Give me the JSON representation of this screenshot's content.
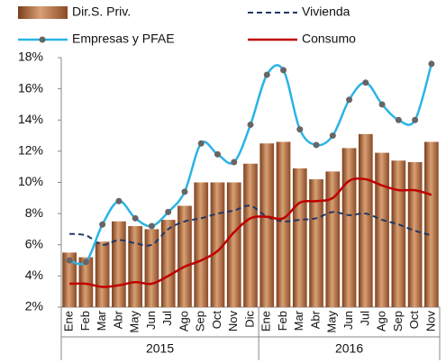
{
  "chart_data": {
    "type": "bar",
    "categories": [
      "Ene",
      "Feb",
      "Mar",
      "Abr",
      "May",
      "Jun",
      "Jul",
      "Ago",
      "Sep",
      "Oct",
      "Nov",
      "Dic",
      "Ene",
      "Feb",
      "Mar",
      "Abr",
      "May",
      "Jun",
      "Jul",
      "Ago",
      "Sep",
      "Oct",
      "Nov"
    ],
    "years": [
      "2015",
      "2016"
    ],
    "series": [
      {
        "name": "Dir.S. Priv.",
        "type": "bar",
        "color": "#b06a3c",
        "values": [
          5.5,
          5.2,
          6.2,
          7.5,
          7.2,
          7.0,
          7.6,
          8.5,
          10.0,
          10.0,
          10.0,
          11.2,
          12.5,
          12.6,
          10.9,
          10.2,
          10.7,
          12.2,
          13.1,
          11.9,
          11.4,
          11.3,
          12.6
        ]
      },
      {
        "name": "Vivienda",
        "type": "line",
        "dashed": true,
        "color": "#1f3864",
        "values": [
          6.7,
          6.6,
          6.0,
          6.3,
          6.1,
          6.0,
          7.0,
          7.5,
          7.7,
          8.0,
          8.2,
          8.5,
          7.8,
          7.5,
          7.6,
          7.7,
          8.1,
          7.9,
          8.0,
          7.6,
          7.3,
          6.9,
          6.6
        ]
      },
      {
        "name": "Empresas y PFAE",
        "type": "line",
        "marker": true,
        "color": "#2bb3e6",
        "marker_color": "#666666",
        "values": [
          5.0,
          4.9,
          7.3,
          8.8,
          7.7,
          7.2,
          8.1,
          9.4,
          12.5,
          11.8,
          11.3,
          13.7,
          16.9,
          17.2,
          13.4,
          12.4,
          13.0,
          15.3,
          16.4,
          15.0,
          14.0,
          14.0,
          17.6
        ]
      },
      {
        "name": "Consumo",
        "type": "line",
        "color": "#c00000",
        "values": [
          3.5,
          3.5,
          3.3,
          3.4,
          3.6,
          3.5,
          4.0,
          4.6,
          5.0,
          5.6,
          6.8,
          7.7,
          7.8,
          7.7,
          8.7,
          8.8,
          9.0,
          10.1,
          10.2,
          9.8,
          9.5,
          9.5,
          9.2
        ]
      }
    ],
    "ylim": [
      2,
      18
    ],
    "yticks": [
      {
        "value": 2,
        "label": "2%"
      },
      {
        "value": 4,
        "label": "4%"
      },
      {
        "value": 6,
        "label": "6%"
      },
      {
        "value": 8,
        "label": "8%"
      },
      {
        "value": 10,
        "label": "10%"
      },
      {
        "value": 12,
        "label": "12%"
      },
      {
        "value": 14,
        "label": "14%"
      },
      {
        "value": 16,
        "label": "16%"
      },
      {
        "value": 18,
        "label": "18%"
      }
    ],
    "grid": false
  }
}
